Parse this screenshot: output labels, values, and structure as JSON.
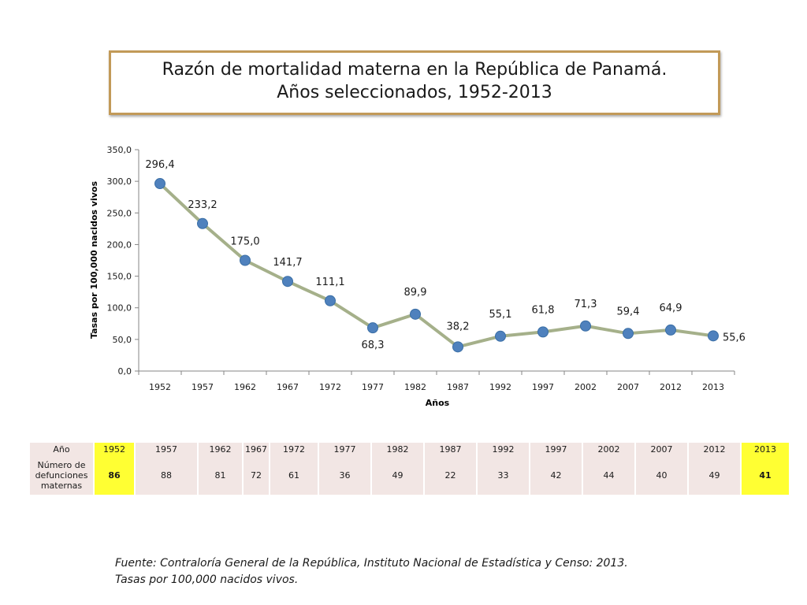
{
  "title": {
    "line1": "Razón de mortalidad materna en la República de Panamá.",
    "line2": "Años seleccionados, 1952-2013"
  },
  "chart_data": {
    "type": "line",
    "categories": [
      "1952",
      "1957",
      "1962",
      "1967",
      "1972",
      "1977",
      "1982",
      "1987",
      "1992",
      "1997",
      "2002",
      "2007",
      "2012",
      "2013"
    ],
    "values": [
      296.4,
      233.2,
      175.0,
      141.7,
      111.1,
      68.3,
      89.9,
      38.2,
      55.1,
      61.8,
      71.3,
      59.4,
      64.9,
      55.6
    ],
    "value_labels": [
      "296,4",
      "233,2",
      "175,0",
      "141,7",
      "111,1",
      "68,3",
      "89,9",
      "38,2",
      "55,1",
      "61,8",
      "71,3",
      "59,4",
      "64,9",
      "55,6"
    ],
    "xlabel": "Años",
    "ylabel": "Tasas por 100,000 nacidos vivos",
    "ylim": [
      0,
      350
    ],
    "yticks": [
      0,
      50,
      100,
      150,
      200,
      250,
      300,
      350
    ],
    "ytick_labels": [
      "0,0",
      "50,0",
      "100,0",
      "150,0",
      "200,0",
      "250,0",
      "300,0",
      "350,0"
    ],
    "grid": false,
    "colors": {
      "line": "#a5b08a",
      "marker": "#4f81bd"
    }
  },
  "table": {
    "row1_label": "Año",
    "row2_label": "Número de defunciones maternas",
    "years": [
      "1952",
      "1957",
      "1962",
      "1967",
      "1972",
      "1977",
      "1982",
      "1987",
      "1992",
      "1997",
      "2002",
      "2007",
      "2012",
      "2013"
    ],
    "deaths": [
      "86",
      "88",
      "81",
      "72",
      "61",
      "36",
      "49",
      "22",
      "33",
      "42",
      "44",
      "40",
      "49",
      "41"
    ],
    "highlight_color": "#ffff33",
    "cell_color": "#f2e6e4"
  },
  "source": {
    "line1": "Fuente: Contraloría General de la República, Instituto Nacional de Estadística y Censo: 2013.",
    "line2": "Tasas por 100,000 nacidos vivos."
  }
}
